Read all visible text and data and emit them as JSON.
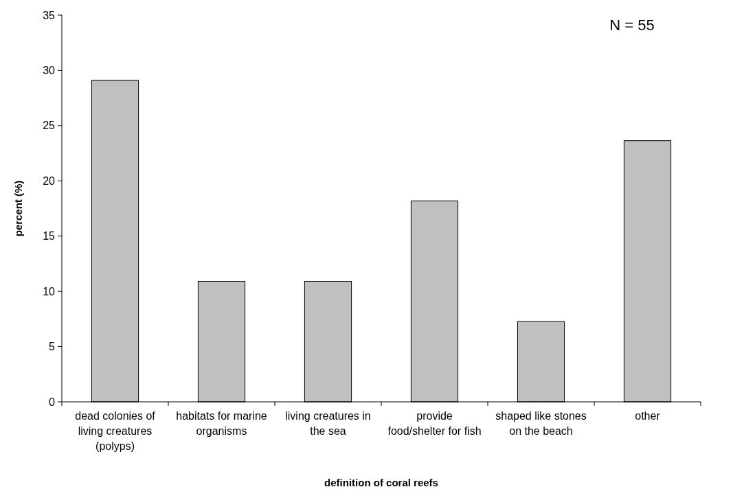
{
  "chart_data": {
    "type": "bar",
    "xlabel": "definition of coral reefs",
    "ylabel": "percent (%)",
    "categories": [
      "dead colonies of living creatures (polyps)",
      "habitats for marine organisms",
      "living creatures in the sea",
      "provide food/shelter for fish",
      "shaped like stones on the beach",
      "other"
    ],
    "values": [
      29.09,
      10.91,
      10.91,
      18.18,
      7.27,
      23.64
    ],
    "color": "#c0c0c0",
    "ylim": [
      0,
      35
    ],
    "yticks": [
      0,
      5,
      10,
      15,
      20,
      25,
      30,
      35
    ],
    "grid": false,
    "annotations": [
      "N = 55"
    ]
  }
}
